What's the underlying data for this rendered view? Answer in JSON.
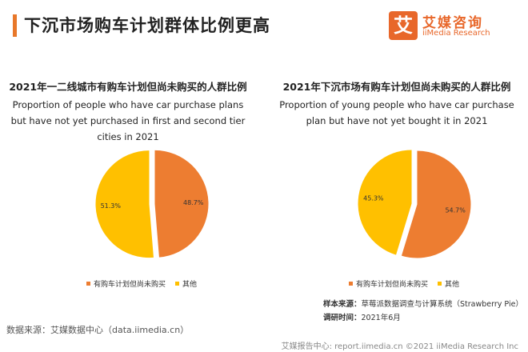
{
  "header": {
    "title": "下沉市场购车计划群体比例更高",
    "logo": {
      "mark": "艾",
      "cn": "艾媒咨询",
      "en": "iiMedia Research"
    }
  },
  "colors": {
    "accent": "#e8782a",
    "series_1": "#ed7d31",
    "series_2": "#ffc000"
  },
  "chart_data": [
    {
      "type": "pie",
      "title_cn": "2021年一二线城市有购车计划但尚未购买的人群比例",
      "title_en": "Proportion of people who have car purchase plans but have not yet purchased in first and second tier cities in 2021",
      "categories": [
        "有购车计划但尚未购买",
        "其他"
      ],
      "values": [
        48.7,
        51.3
      ],
      "labels": [
        "48.7%",
        "51.3%"
      ],
      "colors": [
        "#ed7d31",
        "#ffc000"
      ],
      "legend_position": "bottom"
    },
    {
      "type": "pie",
      "title_cn": "2021年下沉市场有购车计划但尚未购买的人群比例",
      "title_en": "Proportion of young people who have car purchase plan but have not yet bought it in 2021",
      "categories": [
        "有购车计划但尚未购买",
        "其他"
      ],
      "values": [
        54.7,
        45.3
      ],
      "labels": [
        "54.7%",
        "45.3%"
      ],
      "colors": [
        "#ed7d31",
        "#ffc000"
      ],
      "legend_position": "bottom"
    }
  ],
  "footer": {
    "source": "数据来源：艾媒数据中心（data.iimedia.cn）",
    "sample_label": "样本来源：",
    "sample_value": "草莓派数据调查与计算系统（Strawberry Pie）",
    "time_label": "调研时间：",
    "time_value": "2021年6月",
    "watermark": "艾媒报告中心: report.iimedia.cn   ©2021  iiMedia Research  Inc"
  }
}
